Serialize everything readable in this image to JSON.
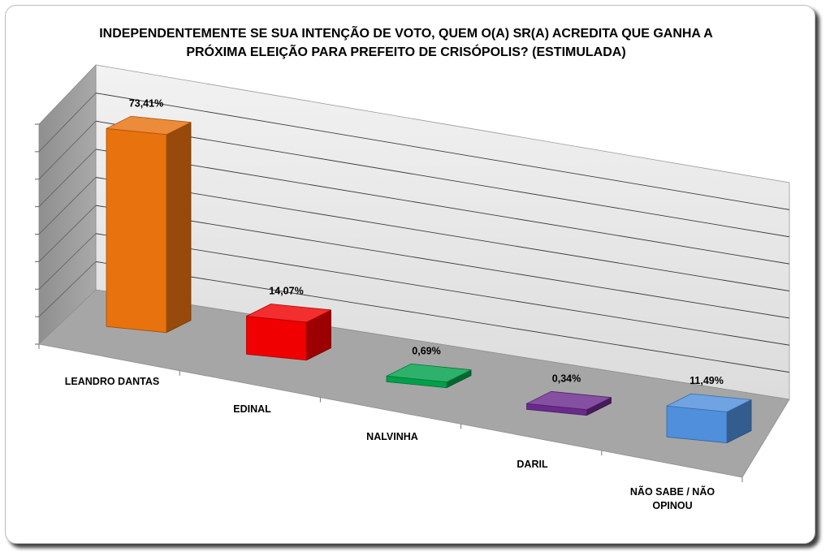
{
  "chart_data": {
    "type": "bar",
    "title_lines": [
      "INDEPENDENTEMENTE SE SUA INTENÇÃO DE VOTO, QUEM O(A) SR(A) ACREDITA QUE GANHA A",
      "PRÓXIMA ELEIÇÃO PARA PREFEITO DE CRISÓPOLIS? (ESTIMULADA)"
    ],
    "categories": [
      "LEANDRO DANTAS",
      "EDINAL",
      "NALVINHA",
      "DARIL",
      "NÃO SABE / NÃO OPINOU"
    ],
    "values": [
      73.41,
      14.07,
      0.69,
      0.34,
      11.49
    ],
    "value_labels": [
      "73,41%",
      "14,07%",
      "0,69%",
      "0,34%",
      "11,49%"
    ],
    "colors": [
      "#e8720e",
      "#f00000",
      "#00a04a",
      "#6a2a8c",
      "#4f8fdc"
    ],
    "ylim": [
      0,
      80
    ],
    "grid": true,
    "style": "3d-bar"
  }
}
